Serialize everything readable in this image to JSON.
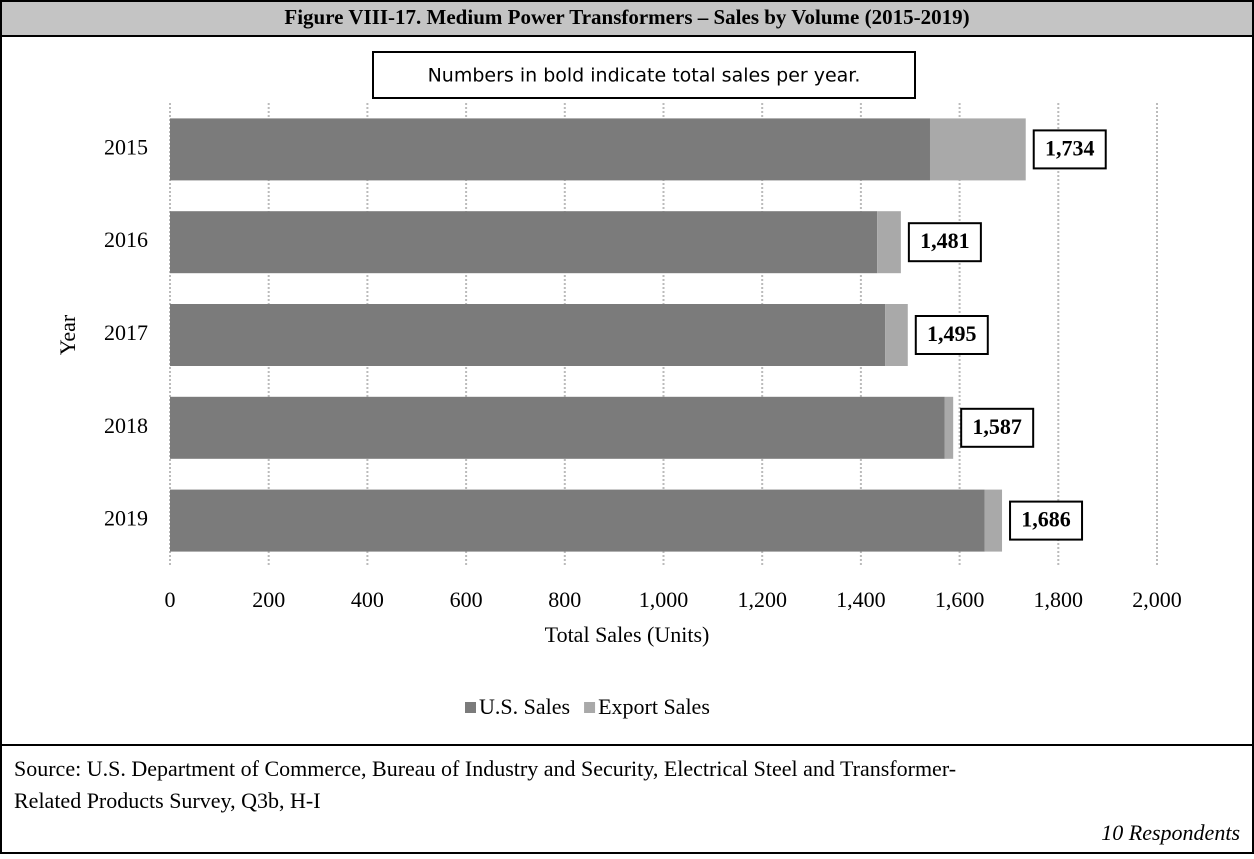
{
  "chart_data": {
    "type": "stacked_bar_horizontal",
    "title": "Figure VIII-17.  Medium Power Transformers – Sales by Volume (2015-2019)",
    "annotation": "Numbers in bold indicate total sales per year.",
    "x_label": "Total Sales (Units)",
    "y_label": "Year",
    "categories": [
      "2015",
      "2016",
      "2017",
      "2018",
      "2019"
    ],
    "series": [
      {
        "name": "U.S. Sales",
        "color": "#7b7b7b",
        "values": [
          1540,
          1433,
          1449,
          1570,
          1651
        ]
      },
      {
        "name": "Export Sales",
        "color": "#a9a9a9",
        "values": [
          194,
          48,
          46,
          17,
          35
        ]
      }
    ],
    "totals": {
      "values": [
        1734,
        1481,
        1495,
        1587,
        1686
      ],
      "value_labels": [
        "1,734",
        "1,481",
        "1,495",
        "1,587",
        "1,686"
      ]
    },
    "xlim": [
      0,
      2000
    ],
    "xticks": [
      0,
      200,
      400,
      600,
      800,
      {
        "value": 1000,
        "label": "1,000"
      },
      {
        "value": 1200,
        "label": "1,200"
      },
      {
        "value": 1400,
        "label": "1,400"
      },
      {
        "value": 1600,
        "label": "1,600"
      },
      {
        "value": 1800,
        "label": "1,800"
      },
      {
        "value": 2000,
        "label": "2,000"
      }
    ],
    "grid": true,
    "legend": "bottom",
    "source": [
      "Source: U.S. Department of Commerce, Bureau of Industry and Security, Electrical Steel and Transformer-",
      "Related Products Survey, Q3b, H-I"
    ],
    "respondents": "10 Respondents"
  }
}
